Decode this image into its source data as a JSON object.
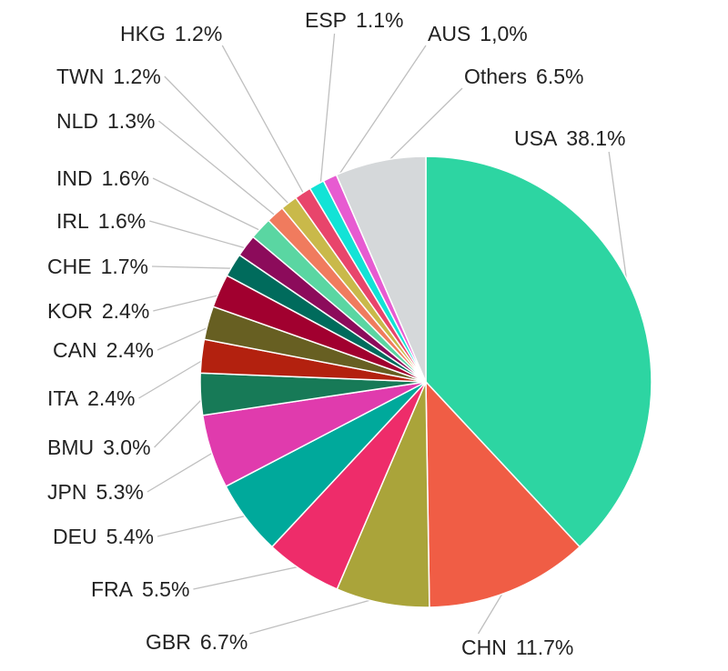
{
  "chart_data": {
    "type": "pie",
    "categories": [
      "USA",
      "CHN",
      "GBR",
      "FRA",
      "DEU",
      "JPN",
      "BMU",
      "ITA",
      "CAN",
      "KOR",
      "CHE",
      "IRL",
      "IND",
      "NLD",
      "TWN",
      "HKG",
      "ESP",
      "AUS",
      "Others"
    ],
    "values": [
      38.1,
      11.7,
      6.7,
      5.5,
      5.4,
      5.3,
      3.0,
      2.4,
      2.4,
      2.4,
      1.7,
      1.6,
      1.6,
      1.3,
      1.2,
      1.2,
      1.1,
      1.0,
      6.5
    ],
    "value_labels": [
      "38.1%",
      "11.7%",
      "6.7%",
      "5.5%",
      "5.4%",
      "5.3%",
      "3.0%",
      "2.4%",
      "2.4%",
      "2.4%",
      "1.7%",
      "1.6%",
      "1.6%",
      "1.3%",
      "1.2%",
      "1.2%",
      "1.1%",
      "1,0%",
      "6.5%"
    ],
    "colors": [
      "#2dd5a2",
      "#f05d45",
      "#aaa43a",
      "#ee2c6a",
      "#00a99b",
      "#e03bad",
      "#177a57",
      "#b3210f",
      "#675f22",
      "#a1002f",
      "#006b5c",
      "#8c0b5b",
      "#5ad6a2",
      "#f07b5e",
      "#c9b94a",
      "#e8456b",
      "#12e3d6",
      "#e75bd1",
      "#d5d8da"
    ]
  }
}
